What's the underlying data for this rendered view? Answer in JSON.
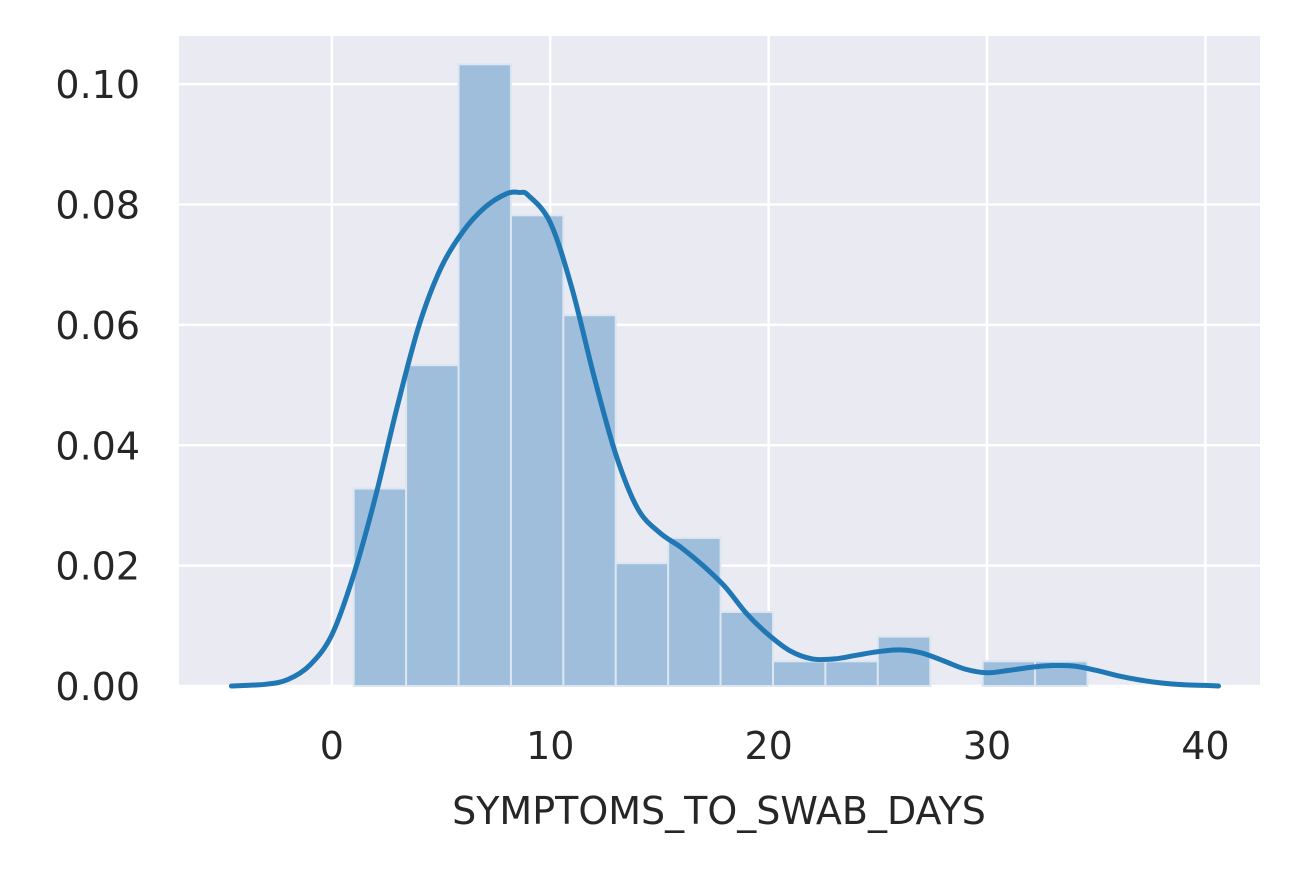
{
  "chart_data": {
    "type": "histogram",
    "xlabel": "SYMPTOMS_TO_SWAB_DAYS",
    "ylabel": "",
    "xlim": [
      -7.0,
      42.5
    ],
    "ylim": [
      0.0,
      0.108
    ],
    "xticks": [
      0,
      10,
      20,
      30,
      40
    ],
    "yticks": [
      0.0,
      0.02,
      0.04,
      0.06,
      0.08,
      0.1
    ],
    "ytick_labels": [
      "0.00",
      "0.02",
      "0.04",
      "0.06",
      "0.08",
      "0.10"
    ],
    "grid": true,
    "background": "#eaeaf2",
    "grid_color": "#ffffff",
    "bar_color": "#9ebedc",
    "bar_edge_color": "#dbe6f1",
    "line_color": "#1f77b4",
    "bins": [
      {
        "x0": 1.0,
        "x1": 3.4,
        "density": 0.0328
      },
      {
        "x0": 3.4,
        "x1": 5.8,
        "density": 0.0533
      },
      {
        "x0": 5.8,
        "x1": 8.2,
        "density": 0.1033
      },
      {
        "x0": 8.2,
        "x1": 10.6,
        "density": 0.0782
      },
      {
        "x0": 10.6,
        "x1": 13.0,
        "density": 0.0616
      },
      {
        "x0": 13.0,
        "x1": 15.4,
        "density": 0.0204
      },
      {
        "x0": 15.4,
        "x1": 17.8,
        "density": 0.0246
      },
      {
        "x0": 17.8,
        "x1": 20.2,
        "density": 0.0123
      },
      {
        "x0": 20.2,
        "x1": 22.6,
        "density": 0.0041
      },
      {
        "x0": 22.6,
        "x1": 25.0,
        "density": 0.0041
      },
      {
        "x0": 25.0,
        "x1": 27.4,
        "density": 0.0082
      },
      {
        "x0": 27.4,
        "x1": 29.8,
        "density": 0.0
      },
      {
        "x0": 29.8,
        "x1": 32.2,
        "density": 0.0041
      },
      {
        "x0": 32.2,
        "x1": 34.6,
        "density": 0.0041
      }
    ],
    "kde": {
      "x": [
        -4.6,
        -3.0,
        -2.0,
        -1.0,
        0.0,
        1.0,
        2.0,
        3.0,
        4.0,
        5.0,
        6.0,
        7.0,
        8.0,
        8.6,
        9.0,
        10.0,
        11.0,
        12.0,
        13.0,
        14.0,
        15.0,
        16.0,
        17.0,
        18.0,
        19.0,
        20.0,
        21.0,
        22.0,
        23.0,
        24.0,
        25.0,
        26.0,
        27.0,
        28.0,
        29.0,
        30.0,
        31.0,
        32.0,
        33.0,
        34.0,
        35.0,
        36.0,
        37.0,
        38.0,
        39.0,
        40.0,
        40.6
      ],
      "y": [
        0.0,
        0.0003,
        0.0011,
        0.0035,
        0.0085,
        0.0185,
        0.0315,
        0.0465,
        0.06,
        0.0695,
        0.0755,
        0.0795,
        0.0818,
        0.082,
        0.0815,
        0.077,
        0.066,
        0.0515,
        0.0385,
        0.0295,
        0.0255,
        0.023,
        0.02,
        0.0165,
        0.012,
        0.0085,
        0.0058,
        0.0045,
        0.0045,
        0.0051,
        0.0057,
        0.006,
        0.0055,
        0.0042,
        0.0028,
        0.0022,
        0.0026,
        0.0031,
        0.0034,
        0.0033,
        0.0026,
        0.0017,
        0.001,
        0.0005,
        0.0002,
        0.0001,
        0.0
      ]
    }
  }
}
